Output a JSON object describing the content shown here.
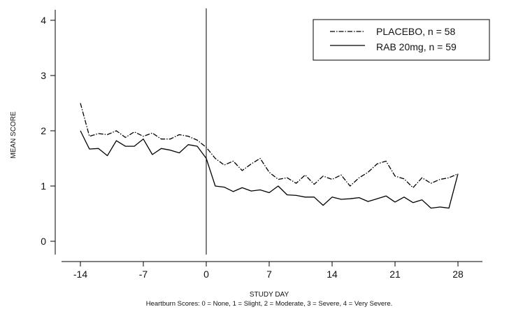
{
  "chart_data": {
    "type": "line",
    "xlabel": "STUDY DAY",
    "ylabel": "MEAN SCORE",
    "footnote": "Heartburn Scores: 0 = None, 1 = Slight, 2 = Moderate, 3 = Severe, 4 = Very Severe.",
    "xlim": [
      -14,
      28
    ],
    "ylim": [
      0,
      4
    ],
    "x_ticks": [
      -14,
      -7,
      0,
      7,
      14,
      21,
      28
    ],
    "x_tick_labels": [
      "-14",
      "-7",
      "0",
      "7",
      "14",
      "21",
      "28"
    ],
    "y_ticks": [
      0,
      1,
      2,
      3,
      4
    ],
    "y_tick_labels": [
      "0",
      "1",
      "2",
      "3",
      "4"
    ],
    "reference_line_x": 0,
    "legend_position": "top-right",
    "x": [
      -14,
      -13,
      -12,
      -11,
      -10,
      -9,
      -8,
      -7,
      -6,
      -5,
      -4,
      -3,
      -2,
      -1,
      0,
      1,
      2,
      3,
      4,
      5,
      6,
      7,
      8,
      9,
      10,
      11,
      12,
      13,
      14,
      15,
      16,
      17,
      18,
      19,
      20,
      21,
      22,
      23,
      24,
      25,
      26,
      27,
      28
    ],
    "series": [
      {
        "name": "PLACEBO, n = 58",
        "line_style": "dashdot",
        "values": [
          2.5,
          1.9,
          1.95,
          1.93,
          2.0,
          1.88,
          1.98,
          1.9,
          1.96,
          1.85,
          1.85,
          1.93,
          1.9,
          1.83,
          1.7,
          1.5,
          1.38,
          1.45,
          1.28,
          1.4,
          1.5,
          1.25,
          1.12,
          1.15,
          1.05,
          1.2,
          1.03,
          1.18,
          1.12,
          1.2,
          1.0,
          1.15,
          1.25,
          1.4,
          1.45,
          1.18,
          1.13,
          0.97,
          1.15,
          1.05,
          1.12,
          1.15,
          1.22
        ]
      },
      {
        "name": "RAB 20mg, n = 59",
        "line_style": "solid",
        "values": [
          2.0,
          1.67,
          1.68,
          1.55,
          1.82,
          1.72,
          1.72,
          1.85,
          1.57,
          1.68,
          1.65,
          1.6,
          1.75,
          1.72,
          1.5,
          1.0,
          0.98,
          0.9,
          0.97,
          0.91,
          0.93,
          0.88,
          1.0,
          0.84,
          0.83,
          0.8,
          0.8,
          0.65,
          0.8,
          0.76,
          0.77,
          0.79,
          0.72,
          0.77,
          0.82,
          0.71,
          0.8,
          0.7,
          0.75,
          0.6,
          0.62,
          0.6,
          1.22
        ]
      }
    ]
  }
}
